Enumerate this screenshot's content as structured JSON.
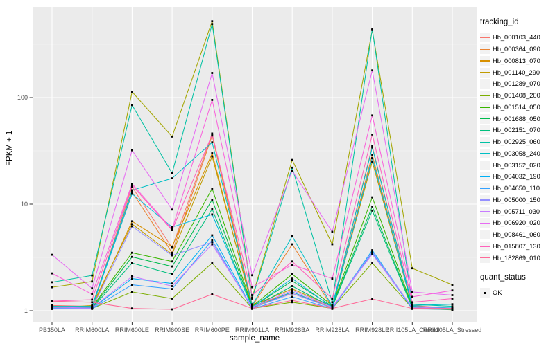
{
  "figure": {
    "background": "#ffffff",
    "panel_background": "#ebebeb",
    "grid_color": "#ffffff",
    "tick_text_color": "#4d4d4d",
    "point_color": "#000000"
  },
  "y_axis": {
    "title": "FPKM + 1",
    "tick_labels": [
      "1",
      "10",
      "100"
    ],
    "tick_values": [
      1,
      10,
      100
    ],
    "minor_values": [
      3.162,
      31.62,
      316.2
    ],
    "scale": "log10"
  },
  "x_axis": {
    "title": "sample_name"
  },
  "legend": {
    "tracking_title": "tracking_id",
    "quant_title": "quant_status",
    "quant_ok_label": "OK"
  },
  "chart_data": {
    "type": "line",
    "title": "",
    "xlabel": "sample_name",
    "ylabel": "FPKM + 1",
    "y_scale": "log10",
    "ylim": [
      1,
      560
    ],
    "grid": true,
    "legend_position": "right",
    "point_shape": "small black square (quant_status OK)",
    "categories": [
      "PB350LA",
      "RRIM600LA",
      "RRIM600LE",
      "RRIM600SE",
      "RRIM600PE",
      "RRIM901LA",
      "RRIM928BA",
      "RRIM928LA",
      "RRIM928LE",
      "RRII105LA_Control",
      "RRII105LA_Stressed"
    ],
    "series": [
      {
        "name": "Hb_000103_440",
        "color": "#F8766D",
        "values": [
          1.12,
          1.1,
          14.5,
          3.9,
          46,
          1.15,
          1.45,
          1.1,
          35,
          1.12,
          1.05
        ]
      },
      {
        "name": "Hb_000364_090",
        "color": "#EA8331",
        "values": [
          1.05,
          1.08,
          13.0,
          3.5,
          44,
          1.1,
          4.2,
          1.08,
          29,
          1.1,
          1.04
        ]
      },
      {
        "name": "Hb_000813_070",
        "color": "#D89000",
        "values": [
          1.04,
          1.06,
          6.9,
          4.0,
          30,
          1.08,
          1.5,
          1.06,
          27,
          1.08,
          1.03
        ]
      },
      {
        "name": "Hb_001140_290",
        "color": "#C09B00",
        "values": [
          1.06,
          1.12,
          6.5,
          3.4,
          28,
          1.12,
          1.6,
          1.1,
          25,
          1.1,
          1.05
        ]
      },
      {
        "name": "Hb_001289_070",
        "color": "#A3A500",
        "values": [
          1.66,
          1.88,
          113,
          43,
          520,
          1.33,
          26,
          4.2,
          430,
          2.5,
          1.75
        ]
      },
      {
        "name": "Hb_001408_200",
        "color": "#7CAE00",
        "values": [
          1.05,
          1.05,
          1.5,
          1.3,
          2.8,
          1.05,
          1.2,
          1.05,
          2.8,
          1.05,
          1.02
        ]
      },
      {
        "name": "Hb_001514_050",
        "color": "#39B600",
        "values": [
          1.1,
          1.08,
          3.5,
          2.9,
          14,
          1.1,
          2.2,
          1.12,
          11.6,
          1.1,
          1.05
        ]
      },
      {
        "name": "Hb_001688_050",
        "color": "#00BB4E",
        "values": [
          1.08,
          1.06,
          3.2,
          2.6,
          11,
          1.08,
          1.9,
          1.1,
          9.5,
          1.08,
          1.04
        ]
      },
      {
        "name": "Hb_002151_070",
        "color": "#00BF7D",
        "values": [
          1.06,
          1.05,
          2.8,
          2.2,
          9.0,
          1.06,
          1.7,
          1.08,
          8.7,
          1.06,
          1.03
        ]
      },
      {
        "name": "Hb_002925_060",
        "color": "#00C1A3",
        "values": [
          1.85,
          2.14,
          85,
          19.5,
          490,
          1.3,
          22,
          1.2,
          440,
          1.15,
          1.1
        ]
      },
      {
        "name": "Hb_003058_240",
        "color": "#00BFC4",
        "values": [
          1.1,
          1.1,
          13.5,
          17.5,
          38,
          1.12,
          5.0,
          1.1,
          34,
          1.12,
          1.15
        ]
      },
      {
        "name": "Hb_003152_020",
        "color": "#00BAE0",
        "values": [
          1.08,
          1.08,
          12.5,
          6.1,
          8.0,
          1.08,
          2.0,
          1.08,
          27,
          1.1,
          1.06
        ]
      },
      {
        "name": "Hb_004032_190",
        "color": "#00B0F6",
        "values": [
          1.05,
          1.05,
          2.0,
          1.8,
          5.1,
          1.05,
          1.5,
          1.05,
          3.7,
          1.05,
          1.04
        ]
      },
      {
        "name": "Hb_004650_110",
        "color": "#35A2FF",
        "values": [
          1.04,
          1.04,
          1.75,
          1.6,
          4.6,
          1.04,
          1.35,
          1.04,
          3.5,
          1.04,
          1.03
        ]
      },
      {
        "name": "Hb_005000_150",
        "color": "#9590FF",
        "values": [
          1.06,
          1.05,
          6.2,
          3.3,
          4.4,
          1.06,
          1.45,
          1.06,
          3.6,
          1.06,
          1.04
        ]
      },
      {
        "name": "Hb_005711_030",
        "color": "#C77CFF",
        "values": [
          1.08,
          1.06,
          2.1,
          1.7,
          4.2,
          1.08,
          1.55,
          1.08,
          3.4,
          1.08,
          1.05
        ]
      },
      {
        "name": "Hb_006920_020",
        "color": "#E76BF3",
        "values": [
          3.35,
          1.62,
          32,
          8.9,
          170,
          2.15,
          20.5,
          5.5,
          180,
          1.5,
          1.4
        ]
      },
      {
        "name": "Hb_008461_060",
        "color": "#FA62DB",
        "values": [
          2.24,
          1.43,
          15.5,
          5.8,
          95,
          1.66,
          2.7,
          2.0,
          68,
          1.35,
          1.55
        ]
      },
      {
        "name": "Hb_015807_130",
        "color": "#FF62BC",
        "values": [
          1.23,
          1.27,
          15.0,
          5.7,
          45,
          1.4,
          2.9,
          1.3,
          45,
          1.2,
          1.3
        ]
      },
      {
        "name": "Hb_182869_010",
        "color": "#FF6A98",
        "values": [
          1.23,
          1.2,
          1.05,
          1.03,
          1.43,
          1.05,
          1.25,
          1.05,
          1.29,
          1.05,
          1.05
        ]
      }
    ]
  }
}
